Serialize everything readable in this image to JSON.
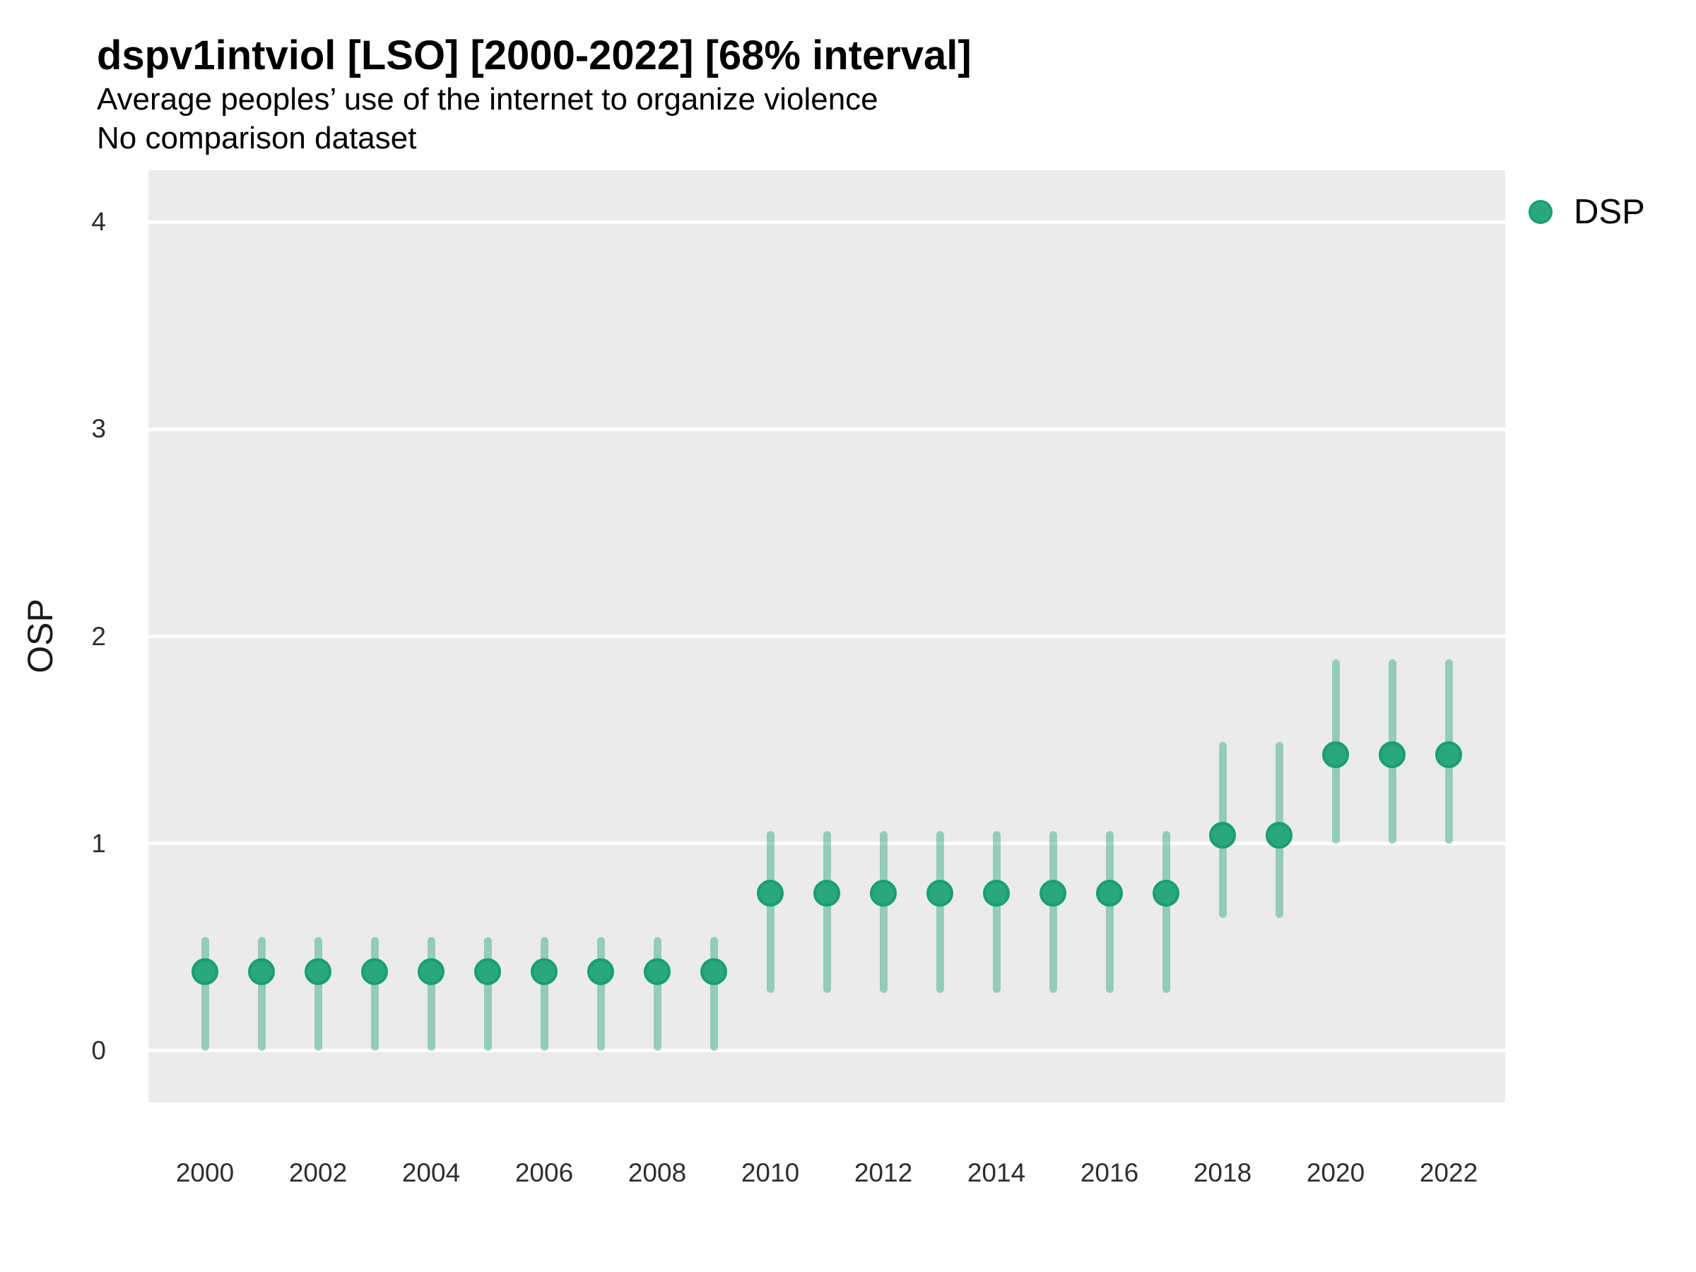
{
  "header": {
    "title": "dspv1intviol [LSO] [2000-2022] [68% interval]",
    "subtitle": "Average peoples’ use of the internet to organize violence",
    "comparison_note": "No comparison dataset"
  },
  "legend": {
    "position": "right-top",
    "items": [
      {
        "label": "DSP",
        "color": "#2aa77c"
      }
    ]
  },
  "colors": {
    "point_fill": "#2aa77c",
    "point_border": "#18a06f",
    "interval_line": "rgba(42,167,124,0.45)",
    "panel_background": "#ebebeb",
    "gridline": "#ffffff",
    "tick_text": "#2e2e2e"
  },
  "chart_data": {
    "type": "pointrange",
    "series_name": "DSP",
    "interval_label": "68% interval",
    "xlabel": "",
    "ylabel": "OSP",
    "x": [
      2000,
      2001,
      2002,
      2003,
      2004,
      2005,
      2006,
      2007,
      2008,
      2009,
      2010,
      2011,
      2012,
      2013,
      2014,
      2015,
      2016,
      2017,
      2018,
      2019,
      2020,
      2021,
      2022
    ],
    "values": [
      0.38,
      0.38,
      0.38,
      0.38,
      0.38,
      0.38,
      0.38,
      0.38,
      0.38,
      0.38,
      0.76,
      0.76,
      0.76,
      0.76,
      0.76,
      0.76,
      0.76,
      0.76,
      1.04,
      1.04,
      1.43,
      1.43,
      1.43
    ],
    "lower": [
      0.0,
      0.0,
      0.0,
      0.0,
      0.0,
      0.0,
      0.0,
      0.0,
      0.0,
      0.0,
      0.28,
      0.28,
      0.28,
      0.28,
      0.28,
      0.28,
      0.28,
      0.28,
      0.64,
      0.64,
      1.0,
      1.0,
      1.0
    ],
    "upper": [
      0.55,
      0.55,
      0.55,
      0.55,
      0.55,
      0.55,
      0.55,
      0.55,
      0.55,
      0.55,
      1.06,
      1.06,
      1.06,
      1.06,
      1.06,
      1.06,
      1.06,
      1.06,
      1.49,
      1.49,
      1.89,
      1.89,
      1.89
    ],
    "xlim": [
      1999,
      2023
    ],
    "ylim": [
      -0.25,
      4.25
    ],
    "y_ticks": [
      0,
      1,
      2,
      3,
      4
    ],
    "x_ticks": [
      2000,
      2002,
      2004,
      2006,
      2008,
      2010,
      2012,
      2014,
      2016,
      2018,
      2020,
      2022
    ],
    "grid": "horizontal-major-only",
    "legend_position": "right-top"
  }
}
